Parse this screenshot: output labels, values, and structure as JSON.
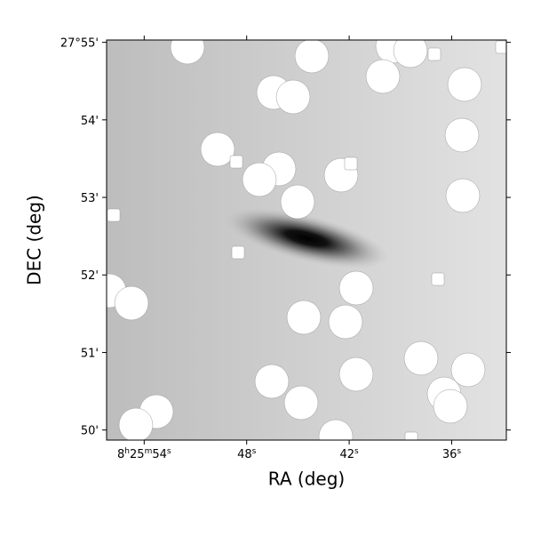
{
  "chart_data": {
    "type": "image",
    "xlabel": "RA (deg)",
    "ylabel": "DEC (deg)",
    "xlim": [
      56.2,
      32.8
    ],
    "ylim": [
      49.87,
      55.03
    ],
    "xticks": [
      {
        "value": 54,
        "label": "8h25m54s"
      },
      {
        "value": 48,
        "label": "48s"
      },
      {
        "value": 42,
        "label": "42s"
      },
      {
        "value": 36,
        "label": "36s"
      }
    ],
    "yticks": [
      {
        "value": 55,
        "label": "27°55'"
      },
      {
        "value": 54,
        "label": "54'"
      },
      {
        "value": 53,
        "label": "53'"
      },
      {
        "value": 52,
        "label": "52'"
      },
      {
        "value": 51,
        "label": "51'"
      },
      {
        "value": 50,
        "label": "50'"
      }
    ]
  }
}
